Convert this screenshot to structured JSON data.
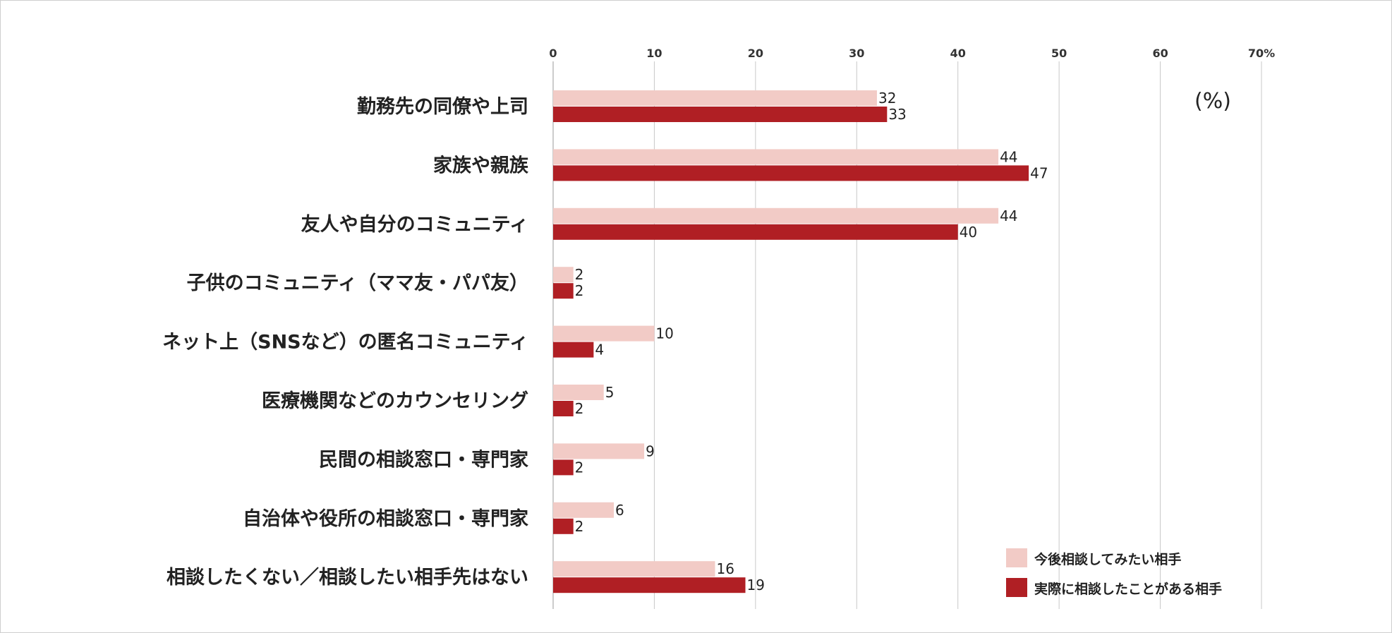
{
  "chart_data": {
    "type": "bar",
    "orientation": "horizontal",
    "categories": [
      "勤務先の同僚や上司",
      "家族や親族",
      "友人や自分のコミュニティ",
      "子供のコミュニティ（ママ友・パパ友）",
      "ネット上（SNSなど）の匿名コミュニティ",
      "医療機関などのカウンセリング",
      "民間の相談窓口・専門家",
      "自治体や役所の相談窓口・専門家",
      "相談したくない／相談したい相手先はない"
    ],
    "series": [
      {
        "name": "今後相談してみたい相手",
        "values": [
          32,
          44,
          44,
          2,
          10,
          5,
          9,
          6,
          16
        ],
        "color": "#f2cbc6"
      },
      {
        "name": "実際に相談したことがある相手",
        "values": [
          33,
          47,
          40,
          2,
          4,
          2,
          2,
          2,
          19
        ],
        "color": "#b01f24"
      }
    ],
    "xlim": [
      0,
      70
    ],
    "xticks": [
      0,
      10,
      20,
      30,
      40,
      50,
      60,
      70
    ],
    "xtick_labels": [
      "0",
      "10",
      "20",
      "30",
      "40",
      "50",
      "60",
      "70%"
    ],
    "unit_note": "(%)",
    "grid": true,
    "legend_position": "bottom-right",
    "title": "",
    "xlabel": "",
    "ylabel": ""
  }
}
